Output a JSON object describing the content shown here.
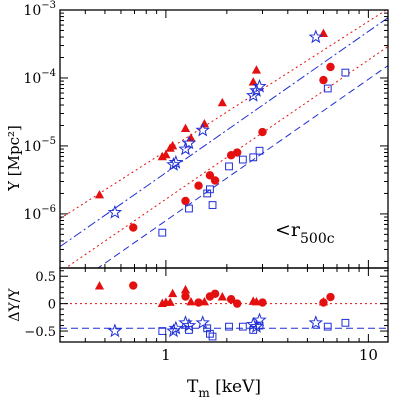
{
  "chart_data": [
    {
      "type": "scatter",
      "panel": "top",
      "xscale": "log",
      "yscale": "log",
      "xlim": [
        0.3,
        12.5
      ],
      "ylim": [
        1.6e-07,
        0.001
      ],
      "ylabel_main": "Y",
      "ylabel_unit": "[Mpc²]",
      "y_ticks": [
        {
          "value": 1e-06,
          "mantissa": "10",
          "exp": "−6"
        },
        {
          "value": 1e-05,
          "mantissa": "10",
          "exp": "−5"
        },
        {
          "value": 0.0001,
          "mantissa": "10",
          "exp": "−4"
        },
        {
          "value": 0.001,
          "mantissa": "10",
          "exp": "−3"
        }
      ],
      "annotation": {
        "prefix": "<r",
        "sub": "500c"
      },
      "colors": {
        "red": "#e41010",
        "blue": "#1f2fd6"
      },
      "series": [
        {
          "marker": "triangle",
          "color": "#e41010",
          "points": [
            [
              0.47,
              1.9e-06
            ],
            [
              0.96,
              6.9e-06
            ],
            [
              1.0,
              7.4e-06
            ],
            [
              1.05,
              9.2e-06
            ],
            [
              1.08,
              1e-05
            ],
            [
              1.25,
              1.8e-05
            ],
            [
              1.33,
              1.3e-05
            ],
            [
              1.55,
              2.1e-05
            ],
            [
              1.9,
              4.3e-05
            ],
            [
              2.7,
              8.7e-05
            ],
            [
              2.8,
              0.00013
            ],
            [
              6.0,
              0.00045
            ]
          ]
        },
        {
          "marker": "star",
          "color": "#1f2fd6",
          "points": [
            [
              0.56,
              1.05e-06
            ],
            [
              1.09,
              5.3e-06
            ],
            [
              1.12,
              5.7e-06
            ],
            [
              1.25,
              9e-06
            ],
            [
              1.3,
              1.1e-05
            ],
            [
              1.52,
              1.7e-05
            ],
            [
              2.7,
              5.5e-05
            ],
            [
              2.8,
              6.5e-05
            ],
            [
              2.9,
              7.5e-05
            ],
            [
              5.5,
              0.0004
            ]
          ]
        },
        {
          "marker": "circle",
          "color": "#e41010",
          "points": [
            [
              0.69,
              6.3e-07
            ],
            [
              1.25,
              1.55e-06
            ],
            [
              1.45,
              2.6e-06
            ],
            [
              1.65,
              3.7e-06
            ],
            [
              1.75,
              3.1e-06
            ],
            [
              2.1,
              7.3e-06
            ],
            [
              2.25,
              8e-06
            ],
            [
              3.0,
              1.6e-05
            ],
            [
              6.0,
              9.3e-05
            ],
            [
              6.5,
              0.000145
            ]
          ]
        },
        {
          "marker": "square",
          "color": "#1f2fd6",
          "points": [
            [
              0.96,
              5.3e-07
            ],
            [
              1.3,
              1.2e-06
            ],
            [
              1.6,
              2e-06
            ],
            [
              1.65,
              2.3e-06
            ],
            [
              1.7,
              1.35e-06
            ],
            [
              2.05,
              5e-06
            ],
            [
              2.4,
              6.3e-06
            ],
            [
              2.7,
              6.8e-06
            ],
            [
              2.9,
              8.5e-06
            ],
            [
              6.3,
              7e-05
            ],
            [
              7.7,
              0.00012
            ]
          ]
        }
      ],
      "fit_lines": [
        {
          "style": "dotted",
          "color": "#e41010",
          "points": [
            [
              0.3,
              8.5e-07
            ],
            [
              12.5,
              0.00104
            ]
          ]
        },
        {
          "style": "dashdot",
          "color": "#1f2fd6",
          "points": [
            [
              0.3,
              3.3e-07
            ],
            [
              12.5,
              0.00077
            ]
          ]
        },
        {
          "style": "dotted",
          "color": "#e41010",
          "points": [
            [
              0.3,
              1.4e-07
            ],
            [
              12.5,
              0.00029
            ]
          ]
        },
        {
          "style": "dashed",
          "color": "#1f2fd6",
          "points": [
            [
              0.3,
              6.5e-08
            ],
            [
              12.5,
              0.000152
            ]
          ]
        }
      ]
    },
    {
      "type": "scatter",
      "panel": "bottom",
      "xscale": "log",
      "xlim": [
        0.3,
        12.5
      ],
      "ylim": [
        -0.7,
        0.65
      ],
      "ylabel": "ΔY/Y",
      "xlabel_main": "T",
      "xlabel_sub": "m",
      "xlabel_unit": "[keV]",
      "x_ticks": [
        {
          "value": 1,
          "label": "1"
        },
        {
          "value": 10,
          "label": "10"
        }
      ],
      "y_ticks": [
        {
          "value": 0.5,
          "label": "0.5"
        },
        {
          "value": 0,
          "label": "0"
        },
        {
          "value": -0.5,
          "label": "−0.5"
        }
      ],
      "series": [
        {
          "marker": "triangle",
          "color": "#e41010",
          "points": [
            [
              0.47,
              0.32
            ],
            [
              0.96,
              0.0
            ],
            [
              1.0,
              0.02
            ],
            [
              1.05,
              0.02
            ],
            [
              1.08,
              0.18
            ],
            [
              1.25,
              0.25
            ],
            [
              1.33,
              0.03
            ],
            [
              1.55,
              0.03
            ],
            [
              1.9,
              0.12
            ],
            [
              2.7,
              0.04
            ],
            [
              2.8,
              0.03
            ],
            [
              6.0,
              0.03
            ]
          ]
        },
        {
          "marker": "star",
          "color": "#1f2fd6",
          "points": [
            [
              0.56,
              -0.5
            ],
            [
              1.09,
              -0.5
            ],
            [
              1.12,
              -0.45
            ],
            [
              1.25,
              -0.35
            ],
            [
              1.3,
              -0.4
            ],
            [
              1.52,
              -0.35
            ],
            [
              2.7,
              -0.38
            ],
            [
              2.8,
              -0.42
            ],
            [
              2.9,
              -0.3
            ],
            [
              5.5,
              -0.35
            ]
          ]
        },
        {
          "marker": "circle",
          "color": "#e41010",
          "points": [
            [
              0.69,
              0.33
            ],
            [
              1.25,
              0.13
            ],
            [
              1.45,
              0.02
            ],
            [
              1.65,
              0.13
            ],
            [
              1.75,
              0.18
            ],
            [
              2.1,
              0.08
            ],
            [
              2.25,
              0.0
            ],
            [
              3.0,
              0.02
            ],
            [
              6.0,
              0.02
            ],
            [
              6.5,
              0.12
            ]
          ]
        },
        {
          "marker": "square",
          "color": "#1f2fd6",
          "points": [
            [
              0.96,
              -0.5
            ],
            [
              1.3,
              -0.48
            ],
            [
              1.6,
              -0.45
            ],
            [
              1.65,
              -0.55
            ],
            [
              1.7,
              -0.6
            ],
            [
              2.05,
              -0.42
            ],
            [
              2.4,
              -0.42
            ],
            [
              2.7,
              -0.48
            ],
            [
              2.9,
              -0.4
            ],
            [
              6.3,
              -0.42
            ],
            [
              7.7,
              -0.35
            ]
          ]
        }
      ],
      "reference_lines": [
        {
          "y": 0,
          "style": "dotted",
          "color": "#e41010"
        },
        {
          "y": -0.45,
          "style": "dashed",
          "color": "#1f2fd6"
        }
      ]
    }
  ]
}
